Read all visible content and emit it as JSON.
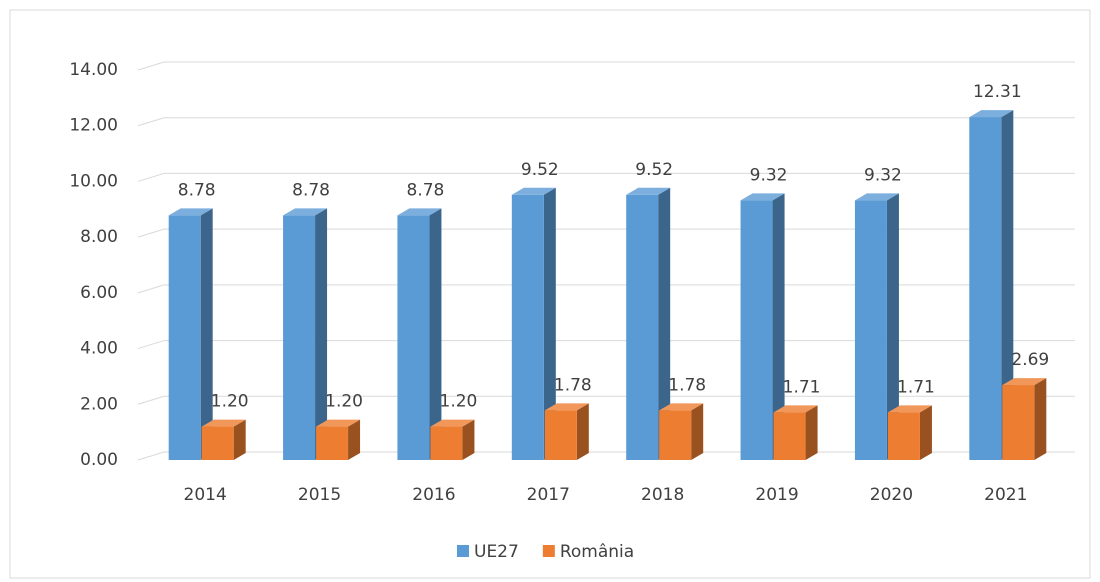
{
  "chart_data": {
    "type": "bar3d",
    "categories": [
      "2014",
      "2015",
      "2016",
      "2017",
      "2018",
      "2019",
      "2020",
      "2021"
    ],
    "series": [
      {
        "name": "UE27",
        "color": "#5b9bd5",
        "values": [
          8.78,
          8.78,
          8.78,
          9.52,
          9.52,
          9.32,
          9.32,
          12.31
        ],
        "value_labels": [
          "8.78",
          "8.78",
          "8.78",
          "9.52",
          "9.52",
          "9.32",
          "9.32",
          "12.31"
        ]
      },
      {
        "name": "România",
        "color": "#ed7d31",
        "values": [
          1.2,
          1.2,
          1.2,
          1.78,
          1.78,
          1.71,
          1.71,
          2.69
        ],
        "value_labels": [
          "1.20",
          "1.20",
          "1.20",
          "1.78",
          "1.78",
          "1.71",
          "1.71",
          "2.69"
        ]
      }
    ],
    "ylim": [
      0,
      14
    ],
    "yticks": [
      {
        "value": 0,
        "label": "0.00"
      },
      {
        "value": 2,
        "label": "2.00"
      },
      {
        "value": 4,
        "label": "4.00"
      },
      {
        "value": 6,
        "label": "6.00"
      },
      {
        "value": 8,
        "label": "8.00"
      },
      {
        "value": 10,
        "label": "10.00"
      },
      {
        "value": 12,
        "label": "12.00"
      },
      {
        "value": 14,
        "label": "14.00"
      }
    ],
    "grid": true,
    "legend": "bottom"
  }
}
